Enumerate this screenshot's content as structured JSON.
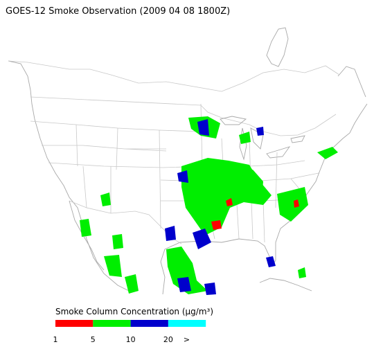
{
  "header": {
    "title": "GOES-12 Smoke Observation (2009 04 08  1800Z)"
  },
  "legend": {
    "title": "Smoke Column Concentration (μg/m³)",
    "colors": [
      "#ff0000",
      "#00ee00",
      "#0000cc",
      "#00ffff"
    ],
    "labels": [
      "1",
      "5",
      "10",
      "20",
      ">"
    ]
  }
}
